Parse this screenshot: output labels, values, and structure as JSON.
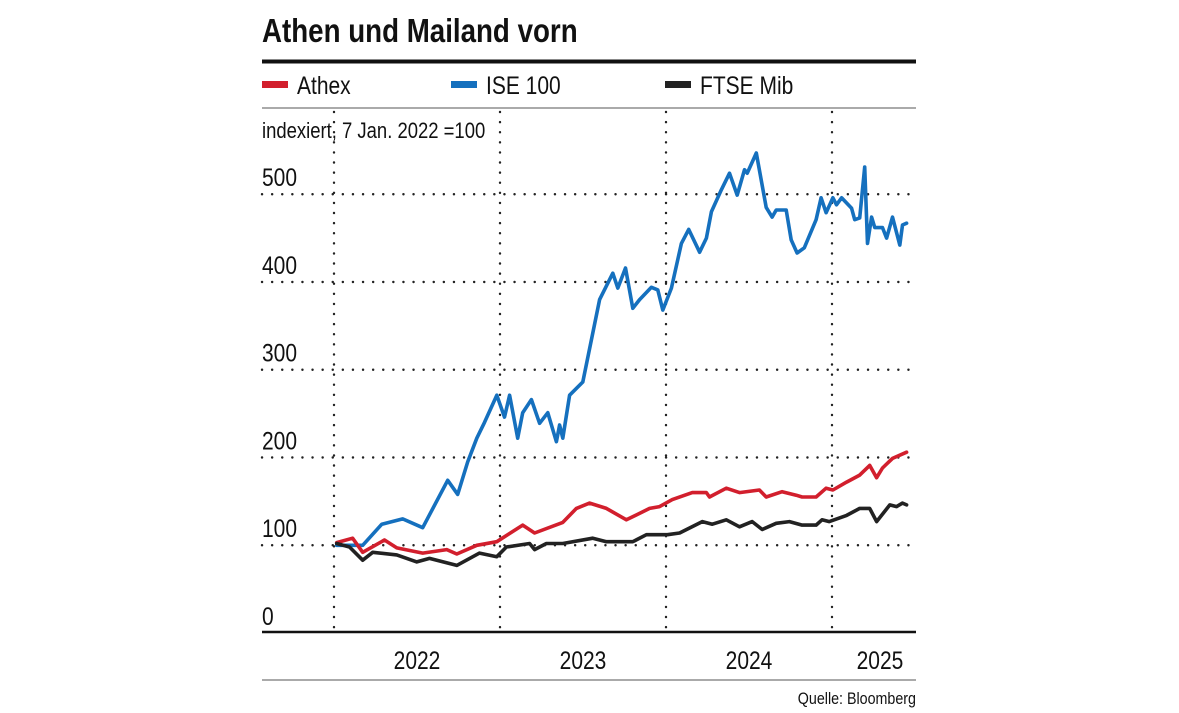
{
  "chart_data": {
    "type": "line",
    "title": "Athen und Mailand vorn",
    "subtitle": "indexiert, 7 Jan. 2022 =100",
    "source": "Quelle: Bloomberg",
    "xlabel": "",
    "ylabel": "",
    "ylim": [
      0,
      500
    ],
    "yticks": [
      "0",
      "100",
      "200",
      "300",
      "400",
      "500"
    ],
    "xticks": [
      "2022",
      "2023",
      "2024",
      "2025"
    ],
    "grid": true,
    "legend_position": "top",
    "series": [
      {
        "name": "Athex",
        "color": "#d21f2d",
        "points": [
          [
            "2022-01-07",
            103
          ],
          [
            "2022-02-11",
            108
          ],
          [
            "2022-03-05",
            92
          ],
          [
            "2022-04-22",
            106
          ],
          [
            "2022-05-19",
            97
          ],
          [
            "2022-07-15",
            91
          ],
          [
            "2022-09-06",
            95
          ],
          [
            "2022-09-28",
            90
          ],
          [
            "2022-11-11",
            100
          ],
          [
            "2022-12-25",
            104
          ],
          [
            "2023-02-20",
            123
          ],
          [
            "2023-03-18",
            114
          ],
          [
            "2023-05-19",
            126
          ],
          [
            "2023-06-18",
            142
          ],
          [
            "2023-07-17",
            148
          ],
          [
            "2023-08-23",
            142
          ],
          [
            "2023-10-06",
            129
          ],
          [
            "2023-11-26",
            142
          ],
          [
            "2023-12-18",
            144
          ],
          [
            "2024-01-15",
            152
          ],
          [
            "2024-02-28",
            160
          ],
          [
            "2024-03-30",
            160
          ],
          [
            "2024-04-06",
            155
          ],
          [
            "2024-05-13",
            165
          ],
          [
            "2024-06-11",
            160
          ],
          [
            "2024-07-25",
            163
          ],
          [
            "2024-08-09",
            155
          ],
          [
            "2024-09-13",
            161
          ],
          [
            "2024-10-14",
            157
          ],
          [
            "2024-10-27",
            155
          ],
          [
            "2024-11-27",
            155
          ],
          [
            "2024-12-19",
            165
          ],
          [
            "2025-01-03",
            163
          ],
          [
            "2025-02-02",
            172
          ],
          [
            "2025-03-03",
            180
          ],
          [
            "2025-03-25",
            191
          ],
          [
            "2025-04-09",
            177
          ],
          [
            "2025-04-22",
            188
          ],
          [
            "2025-05-14",
            199
          ],
          [
            "2025-06-14",
            206
          ]
        ]
      },
      {
        "name": "ISE 100",
        "color": "#1570be",
        "points": [
          [
            "2022-01-07",
            100
          ],
          [
            "2022-03-05",
            100
          ],
          [
            "2022-04-16",
            124
          ],
          [
            "2022-06-01",
            130
          ],
          [
            "2022-07-15",
            120
          ],
          [
            "2022-09-08",
            174
          ],
          [
            "2022-09-30",
            158
          ],
          [
            "2022-10-22",
            195
          ],
          [
            "2022-11-11",
            222
          ],
          [
            "2022-11-28",
            240
          ],
          [
            "2022-12-25",
            271
          ],
          [
            "2023-01-11",
            246
          ],
          [
            "2023-01-22",
            271
          ],
          [
            "2023-02-09",
            222
          ],
          [
            "2023-02-20",
            251
          ],
          [
            "2023-03-11",
            266
          ],
          [
            "2023-03-29",
            239
          ],
          [
            "2023-04-16",
            251
          ],
          [
            "2023-05-05",
            218
          ],
          [
            "2023-05-12",
            237
          ],
          [
            "2023-05-19",
            222
          ],
          [
            "2023-06-03",
            271
          ],
          [
            "2023-07-02",
            286
          ],
          [
            "2023-08-08",
            380
          ],
          [
            "2023-09-06",
            410
          ],
          [
            "2023-09-17",
            393
          ],
          [
            "2023-10-04",
            416
          ],
          [
            "2023-10-20",
            370
          ],
          [
            "2023-11-04",
            380
          ],
          [
            "2023-11-30",
            394
          ],
          [
            "2023-12-14",
            391
          ],
          [
            "2023-12-25",
            368
          ],
          [
            "2024-01-13",
            393
          ],
          [
            "2024-02-04",
            444
          ],
          [
            "2024-02-20",
            460
          ],
          [
            "2024-03-15",
            434
          ],
          [
            "2024-03-30",
            450
          ],
          [
            "2024-04-10",
            480
          ],
          [
            "2024-05-02",
            505
          ],
          [
            "2024-05-20",
            524
          ],
          [
            "2024-06-06",
            499
          ],
          [
            "2024-06-22",
            528
          ],
          [
            "2024-06-28",
            524
          ],
          [
            "2024-07-18",
            547
          ],
          [
            "2024-08-09",
            485
          ],
          [
            "2024-08-22",
            474
          ],
          [
            "2024-08-31",
            482
          ],
          [
            "2024-09-22",
            482
          ],
          [
            "2024-10-03",
            448
          ],
          [
            "2024-10-16",
            433
          ],
          [
            "2024-11-01",
            439
          ],
          [
            "2024-11-27",
            471
          ],
          [
            "2024-12-08",
            496
          ],
          [
            "2024-12-19",
            479
          ],
          [
            "2025-01-03",
            496
          ],
          [
            "2025-01-11",
            488
          ],
          [
            "2025-01-22",
            496
          ],
          [
            "2025-02-13",
            484
          ],
          [
            "2025-02-20",
            471
          ],
          [
            "2025-03-03",
            473
          ],
          [
            "2025-03-14",
            531
          ],
          [
            "2025-03-20",
            444
          ],
          [
            "2025-03-29",
            474
          ],
          [
            "2025-04-05",
            462
          ],
          [
            "2025-04-22",
            462
          ],
          [
            "2025-05-01",
            450
          ],
          [
            "2025-05-14",
            474
          ],
          [
            "2025-05-30",
            442
          ],
          [
            "2025-06-05",
            465
          ],
          [
            "2025-06-14",
            467
          ]
        ]
      },
      {
        "name": "FTSE Mib",
        "color": "#222222",
        "points": [
          [
            "2022-01-07",
            102
          ],
          [
            "2022-02-04",
            98
          ],
          [
            "2022-03-05",
            83
          ],
          [
            "2022-03-27",
            92
          ],
          [
            "2022-05-19",
            89
          ],
          [
            "2022-07-02",
            81
          ],
          [
            "2022-07-30",
            85
          ],
          [
            "2022-09-28",
            77
          ],
          [
            "2022-11-17",
            91
          ],
          [
            "2022-12-25",
            87
          ],
          [
            "2023-01-15",
            98
          ],
          [
            "2023-03-07",
            102
          ],
          [
            "2023-03-18",
            95
          ],
          [
            "2023-04-13",
            102
          ],
          [
            "2023-05-19",
            102
          ],
          [
            "2023-07-24",
            108
          ],
          [
            "2023-08-23",
            104
          ],
          [
            "2023-10-20",
            104
          ],
          [
            "2023-11-19",
            112
          ],
          [
            "2024-01-04",
            112
          ],
          [
            "2024-01-31",
            114
          ],
          [
            "2024-03-21",
            127
          ],
          [
            "2024-04-12",
            124
          ],
          [
            "2024-05-13",
            129
          ],
          [
            "2024-06-11",
            121
          ],
          [
            "2024-07-09",
            127
          ],
          [
            "2024-07-31",
            118
          ],
          [
            "2024-08-31",
            125
          ],
          [
            "2024-09-29",
            127
          ],
          [
            "2024-10-27",
            123
          ],
          [
            "2024-11-27",
            123
          ],
          [
            "2024-12-10",
            129
          ],
          [
            "2024-12-26",
            127
          ],
          [
            "2025-02-02",
            134
          ],
          [
            "2025-03-03",
            142
          ],
          [
            "2025-03-25",
            142
          ],
          [
            "2025-04-09",
            127
          ],
          [
            "2025-05-08",
            146
          ],
          [
            "2025-05-23",
            144
          ],
          [
            "2025-06-05",
            148
          ],
          [
            "2025-06-14",
            146
          ]
        ]
      }
    ]
  }
}
